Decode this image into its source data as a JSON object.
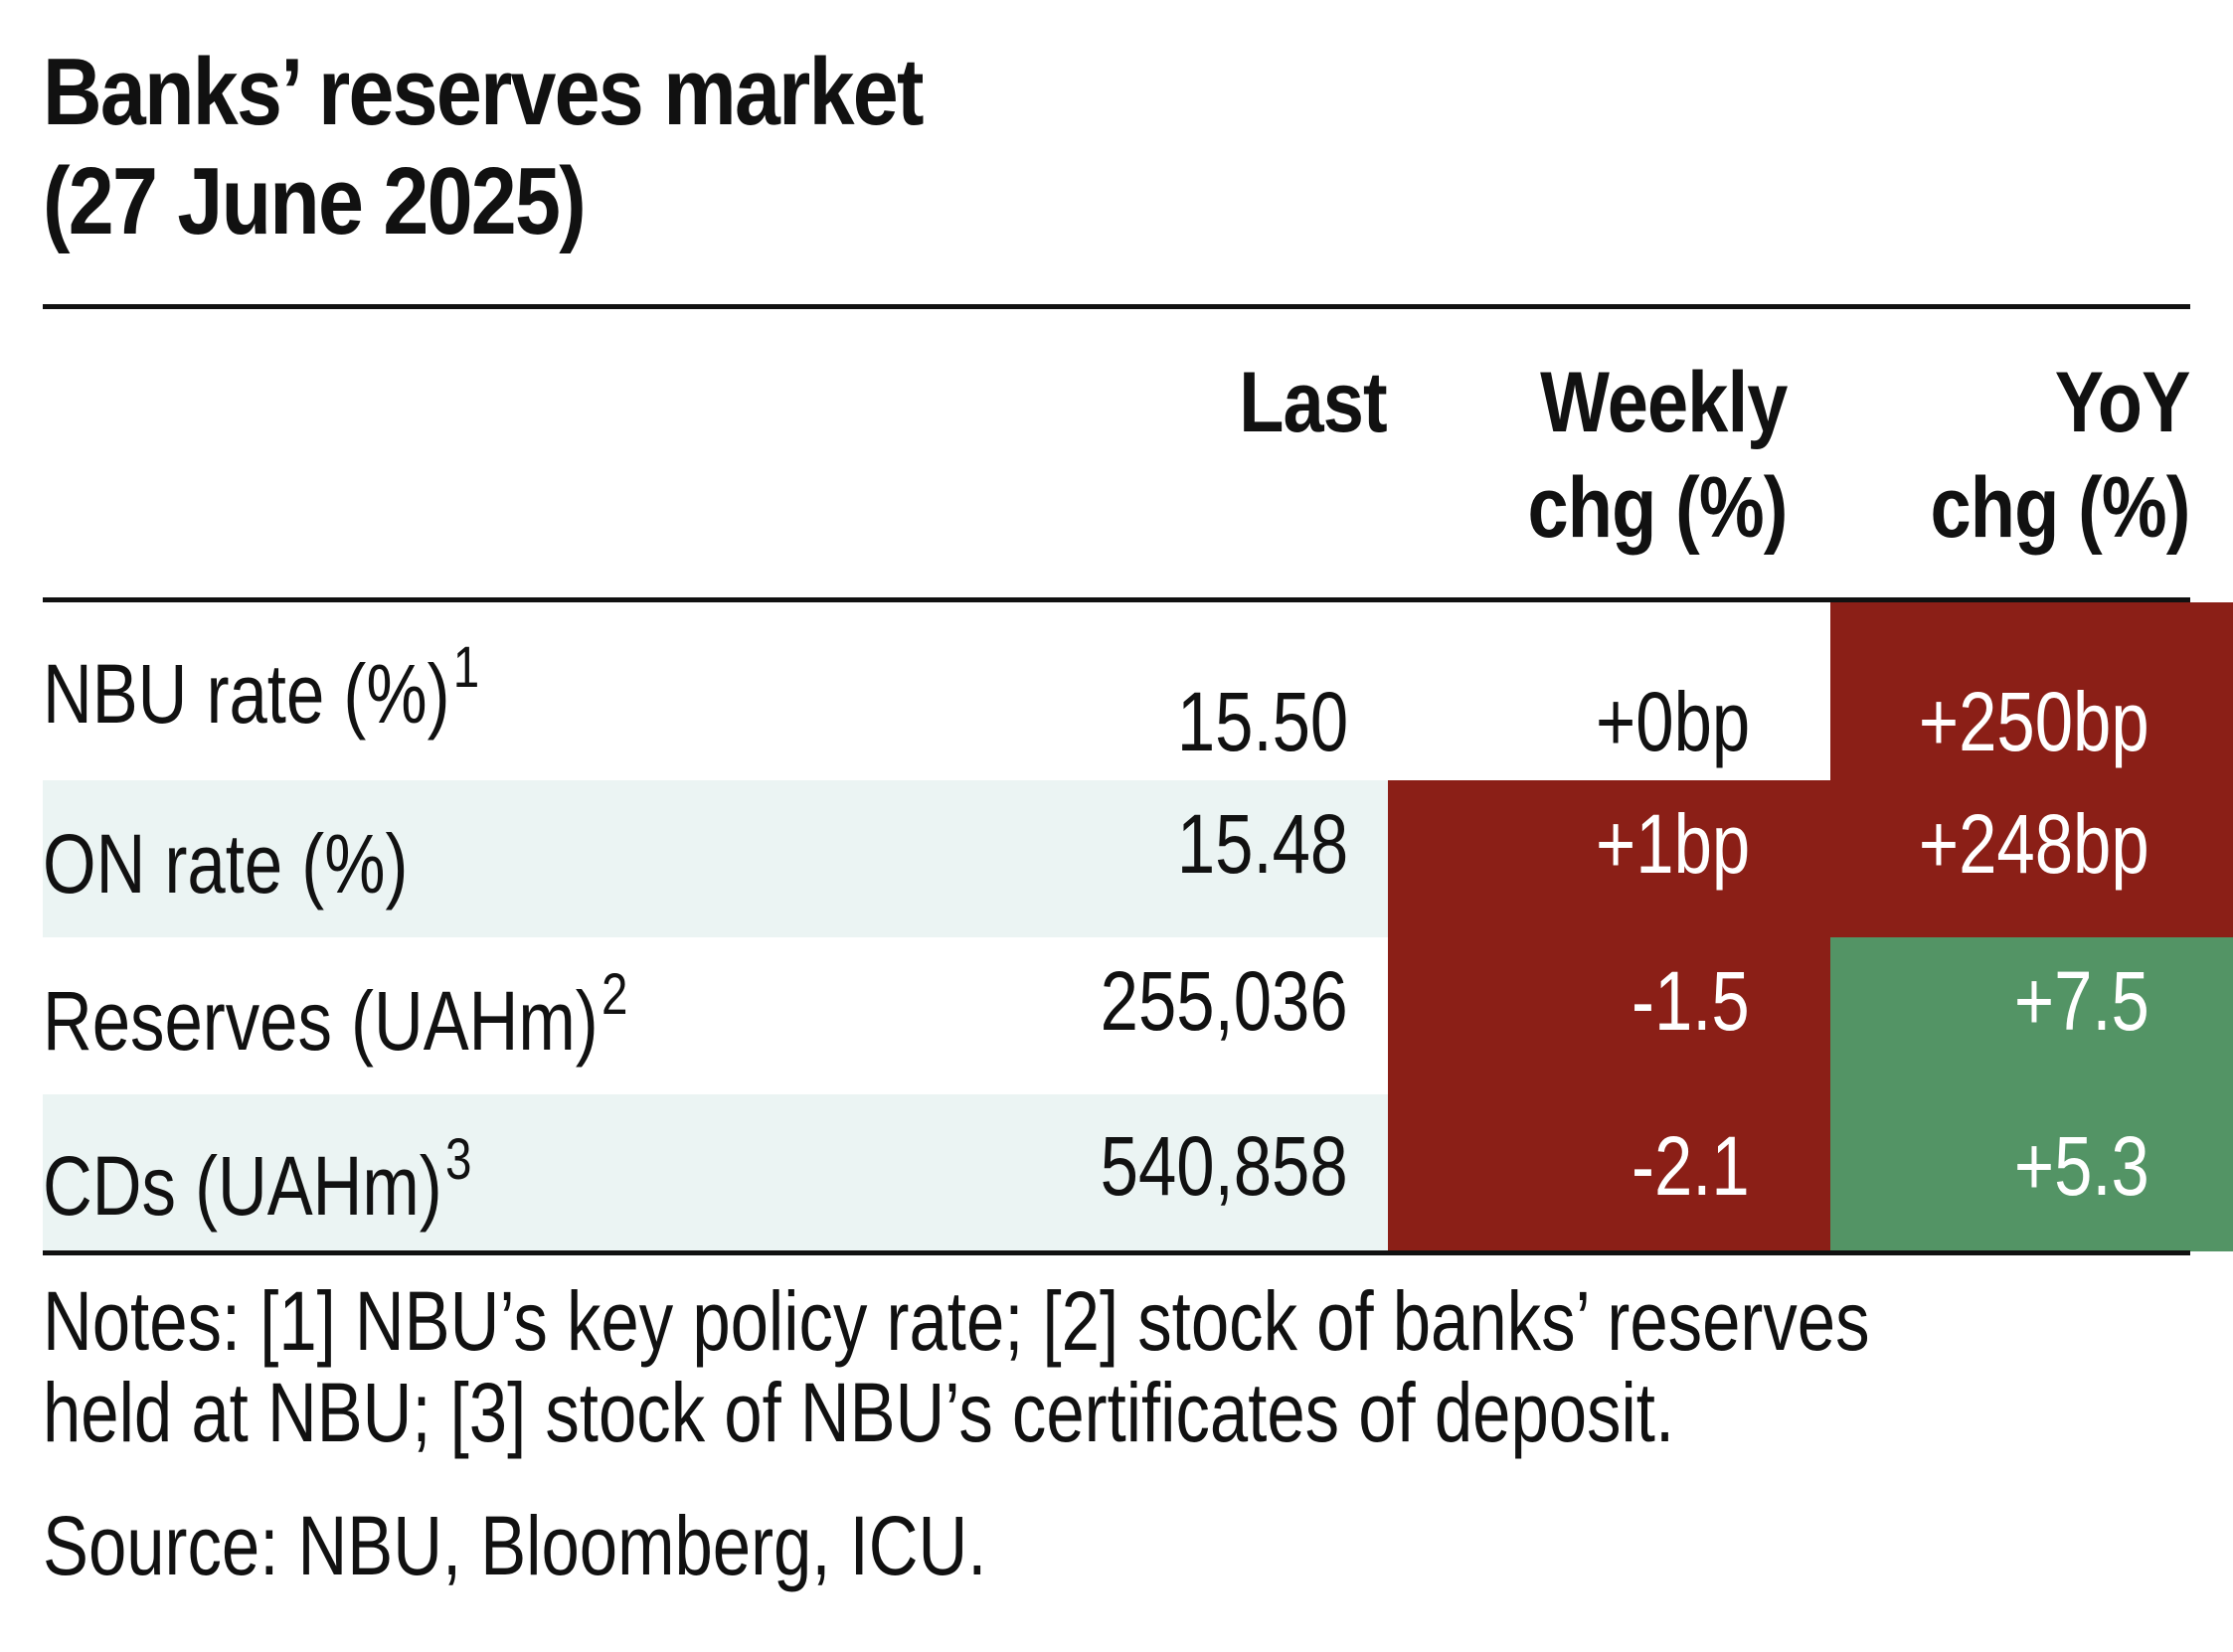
{
  "title_line1": "Banks’ reserves market",
  "title_line2": "(27 June 2025)",
  "columns": {
    "last": "Last",
    "weekly_line1": "Weekly",
    "weekly_line2": "chg (%)",
    "yoy_line1": "YoY",
    "yoy_line2": "chg (%)"
  },
  "rows": [
    {
      "label": "NBU rate (%)",
      "note": "1",
      "last": "15.50",
      "weekly": "+0bp",
      "yoy": "+250bp",
      "weekly_color": "none",
      "yoy_color": "#8b1f17"
    },
    {
      "label": "ON rate (%)",
      "note": "",
      "last": "15.48",
      "weekly": "+1bp",
      "yoy": "+248bp",
      "weekly_color": "#8b1f17",
      "yoy_color": "#8b1f17"
    },
    {
      "label": "Reserves (UAHm)",
      "note": "2",
      "last": "255,036",
      "weekly": "-1.5",
      "yoy": "+7.5",
      "weekly_color": "#8b1f17",
      "yoy_color": "#539465"
    },
    {
      "label": "CDs (UAHm)",
      "note": "3",
      "last": "540,858",
      "weekly": "-2.1",
      "yoy": "+5.3",
      "weekly_color": "#8b1f17",
      "yoy_color": "#539465"
    }
  ],
  "notes_line1": "Notes: [1] NBU’s key policy rate; [2] stock of banks’ reserves",
  "notes_line2": "held at NBU; [3] stock of NBU’s certificates of deposit.",
  "source": "Source: NBU, Bloomberg, ICU."
}
